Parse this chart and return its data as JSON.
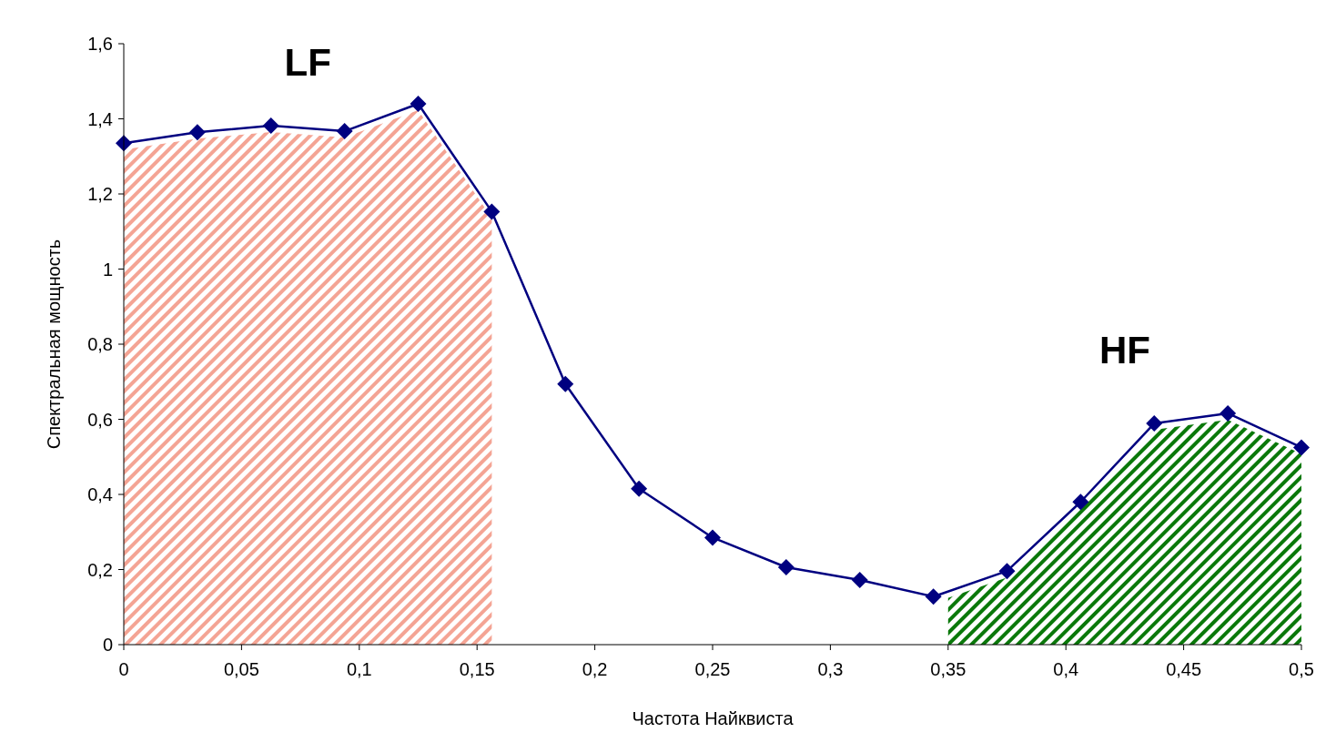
{
  "chart_data": {
    "type": "line",
    "xlabel": "Частота Найквиста",
    "ylabel": "Спектральная мощность",
    "x": [
      0,
      0.03125,
      0.0625,
      0.09375,
      0.125,
      0.15625,
      0.1875,
      0.21875,
      0.25,
      0.28125,
      0.3125,
      0.34375,
      0.375,
      0.40625,
      0.4375,
      0.46875,
      0.5
    ],
    "series": [
      {
        "values": [
          1.335,
          1.364,
          1.382,
          1.367,
          1.44,
          1.153,
          0.694,
          0.415,
          0.285,
          0.206,
          0.172,
          0.128,
          0.196,
          0.38,
          0.589,
          0.616,
          0.525
        ],
        "color": "#000080"
      }
    ],
    "bands": [
      {
        "axis": "x",
        "from": 0,
        "to": 0.15625,
        "label": "LF",
        "color": "#f4a494"
      },
      {
        "axis": "x",
        "from": 0.35,
        "to": 0.5,
        "label": "HF",
        "color": "#0a780a"
      }
    ],
    "marker": "diamond",
    "line_style": "solid",
    "grid": false,
    "xlim": [
      0,
      0.5
    ],
    "xticks": [
      0,
      {
        "value": 0.05,
        "label": "0,05"
      },
      {
        "value": 0.1,
        "label": "0,1"
      },
      {
        "value": 0.15,
        "label": "0,15"
      },
      {
        "value": 0.2,
        "label": "0,2"
      },
      {
        "value": 0.25,
        "label": "0,25"
      },
      {
        "value": 0.3,
        "label": "0,3"
      },
      {
        "value": 0.35,
        "label": "0,35"
      },
      {
        "value": 0.4,
        "label": "0,4"
      },
      {
        "value": 0.45,
        "label": "0,45"
      },
      {
        "value": 0.5,
        "label": "0,5"
      }
    ],
    "ylim": [
      0,
      1.6
    ],
    "yticks": [
      0,
      {
        "value": 0.2,
        "label": "0,2"
      },
      {
        "value": 0.4,
        "label": "0,4"
      },
      {
        "value": 0.6,
        "label": "0,6"
      },
      {
        "value": 0.8,
        "label": "0,8"
      },
      1,
      {
        "value": 1.2,
        "label": "1,2"
      },
      {
        "value": 1.4,
        "label": "1,4"
      },
      {
        "value": 1.6,
        "label": "1,6"
      }
    ]
  }
}
